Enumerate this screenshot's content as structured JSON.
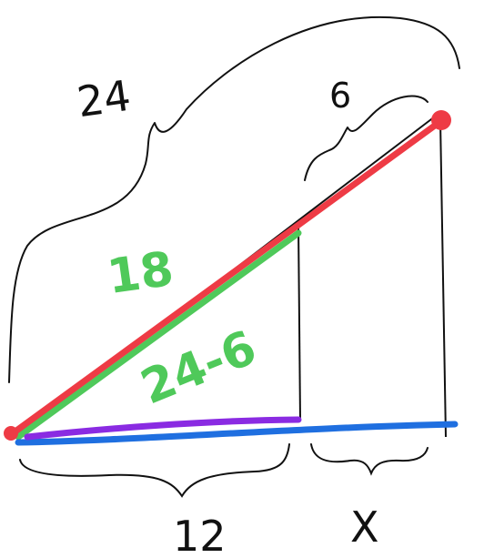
{
  "labels": {
    "top_brace": "24",
    "small_brace": "6",
    "green_outer": "18",
    "green_inner": "24-6",
    "bottom_left": "12",
    "bottom_right": "X"
  },
  "colors": {
    "ink": "#111111",
    "red": "#ee3b45",
    "green": "#4fc95a",
    "purple": "#8a2be2",
    "blue": "#1f6fe0",
    "background": "#ffffff"
  }
}
